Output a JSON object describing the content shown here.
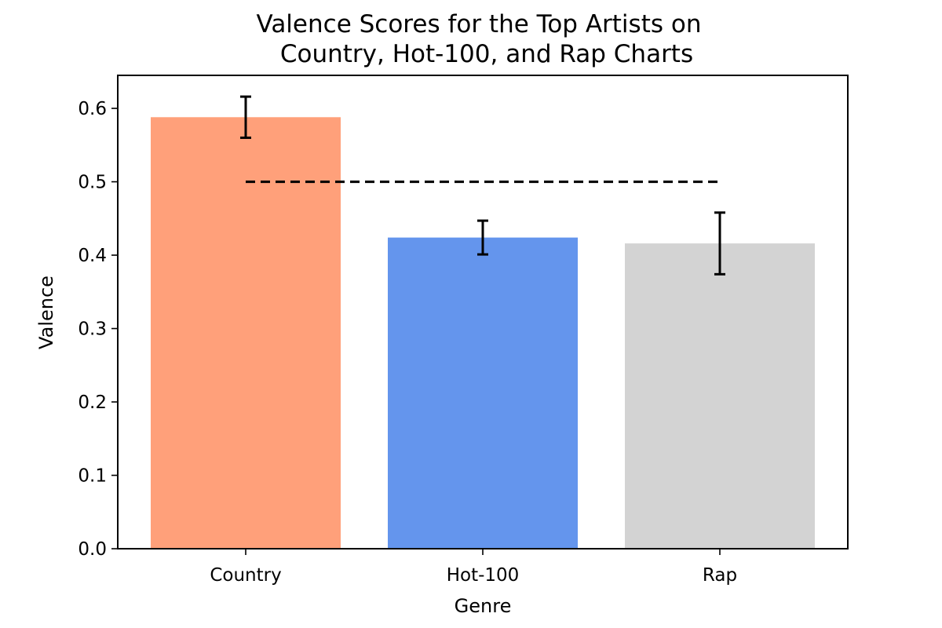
{
  "chart_data": {
    "type": "bar",
    "title": [
      "Valence Scores for the Top Artists on",
      "Country, Hot-100, and Rap Charts"
    ],
    "xlabel": "Genre",
    "ylabel": "Valence",
    "categories": [
      "Country",
      "Hot-100",
      "Rap"
    ],
    "values": [
      0.588,
      0.424,
      0.416
    ],
    "errors": [
      0.028,
      0.023,
      0.042
    ],
    "colors": [
      "#ffa07a",
      "#6495ed",
      "#d3d3d3"
    ],
    "ylim": [
      0.0,
      0.645
    ],
    "yticks": [
      "0.0",
      "0.1",
      "0.2",
      "0.3",
      "0.4",
      "0.5",
      "0.6"
    ],
    "reference_line": {
      "y": 0.5,
      "style": "dashed",
      "from_category": "Country",
      "to_category": "Rap"
    },
    "grid": false,
    "legend": "none"
  }
}
